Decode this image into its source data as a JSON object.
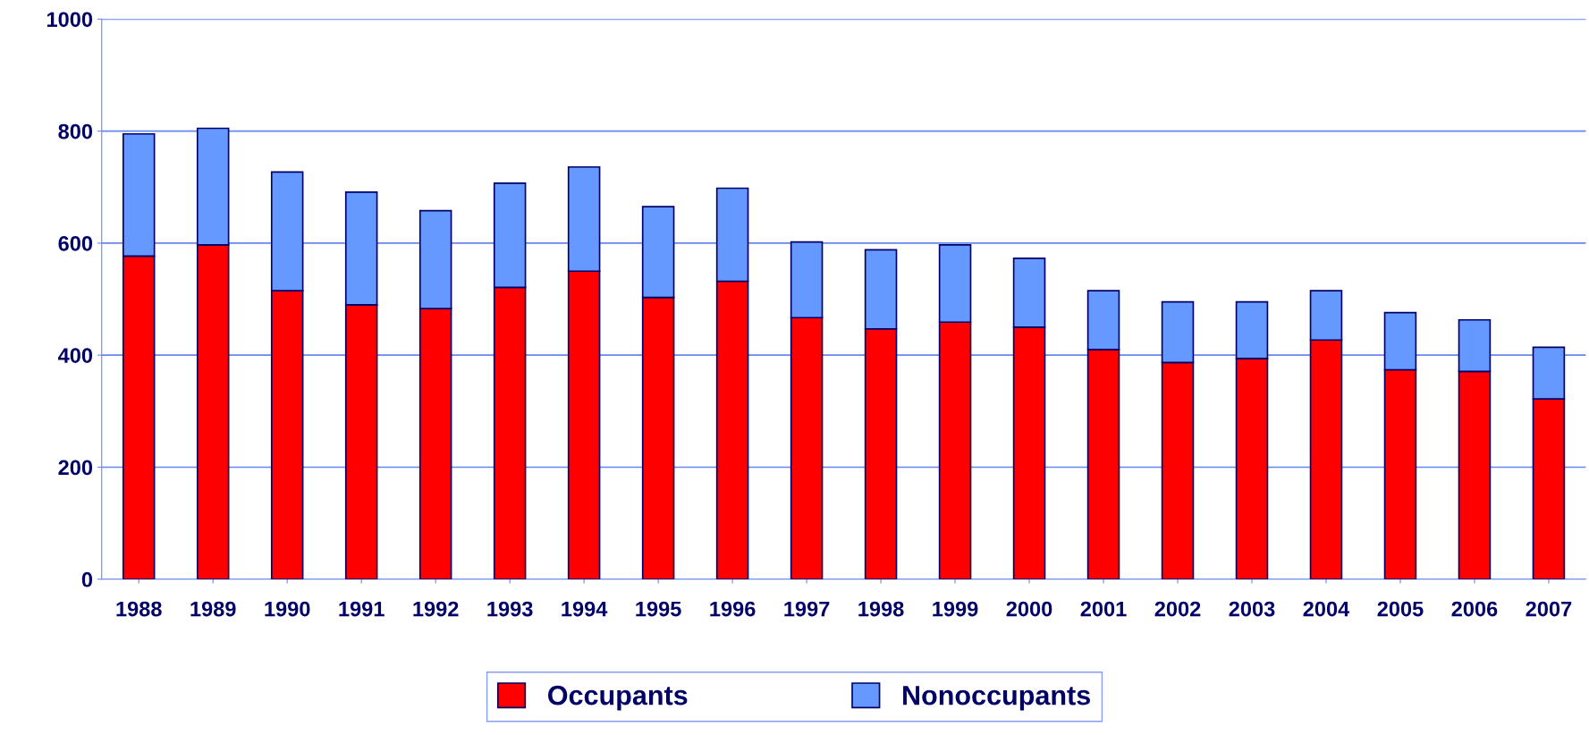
{
  "chart_data": {
    "type": "bar",
    "stacked": true,
    "categories": [
      "1988",
      "1989",
      "1990",
      "1991",
      "1992",
      "1993",
      "1994",
      "1995",
      "1996",
      "1997",
      "1998",
      "1999",
      "2000",
      "2001",
      "2002",
      "2003",
      "2004",
      "2005",
      "2006",
      "2007"
    ],
    "series": [
      {
        "name": "Occupants",
        "color": "#ff0000",
        "values": [
          577,
          597,
          515,
          490,
          483,
          521,
          550,
          503,
          532,
          467,
          447,
          459,
          450,
          410,
          387,
          394,
          427,
          374,
          371,
          322
        ]
      },
      {
        "name": "Nonoccupants",
        "color": "#6699ff",
        "values": [
          218,
          208,
          212,
          201,
          175,
          186,
          186,
          162,
          166,
          135,
          141,
          138,
          123,
          105,
          108,
          101,
          88,
          102,
          92,
          92
        ]
      }
    ],
    "ylim": [
      0,
      1000
    ],
    "yticks": [
      0,
      200,
      400,
      600,
      800,
      1000
    ],
    "grid": "y",
    "legend": "bottom"
  }
}
